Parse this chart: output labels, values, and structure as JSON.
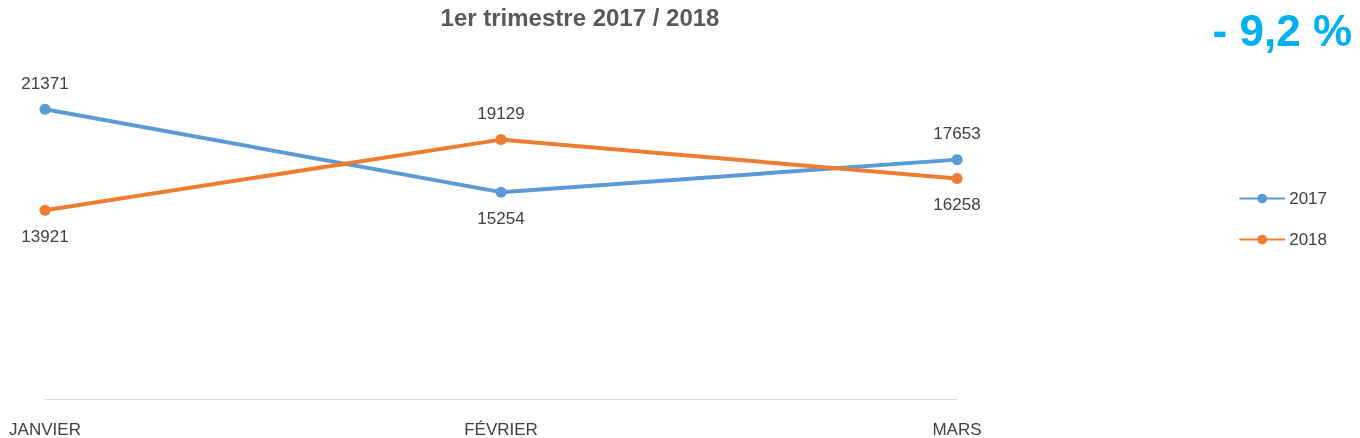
{
  "chart_data": {
    "type": "line",
    "title": "1er trimestre 2017 / 2018",
    "categories": [
      "JANVIER",
      "FÉVRIER",
      "MARS"
    ],
    "series": [
      {
        "name": "2017",
        "color": "#5b9bd5",
        "values": [
          21371,
          15254,
          17653
        ]
      },
      {
        "name": "2018",
        "color": "#ed7d31",
        "values": [
          13921,
          19129,
          16258
        ]
      }
    ],
    "tick_labels": "x",
    "grid": false,
    "legend": "right",
    "marker": "circle",
    "line_style": "solid",
    "data_labels": true,
    "annotations": [
      "- 9,2 %"
    ]
  }
}
